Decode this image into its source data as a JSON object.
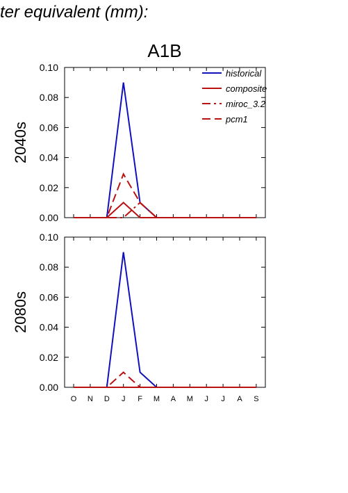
{
  "header": {
    "text": "ter equivalent (mm):"
  },
  "scenario_title": "A1B",
  "colors": {
    "historical": "#1111bb",
    "red": "#bb1111",
    "axis": "#000000"
  },
  "chart_data": [
    {
      "type": "line",
      "panel": "2040s",
      "title": "A1B",
      "ylabel": "2040s",
      "xlabel": "",
      "ylim": [
        0,
        0.1
      ],
      "yticks": [
        "0.00",
        "0.02",
        "0.04",
        "0.06",
        "0.08",
        "0.10"
      ],
      "categories": [
        "O",
        "N",
        "D",
        "J",
        "F",
        "M",
        "A",
        "M",
        "J",
        "J",
        "A",
        "S"
      ],
      "grid": false,
      "legend_position": "top-right",
      "series": [
        {
          "name": "historical",
          "style": "solid",
          "color": "#1111bb",
          "values": [
            0,
            0,
            0,
            0.09,
            0.01,
            0,
            0,
            0,
            0,
            0,
            0,
            0
          ]
        },
        {
          "name": "composite",
          "style": "solid",
          "color": "#bb1111",
          "values": [
            0,
            0,
            0,
            0.01,
            0,
            0,
            0,
            0,
            0,
            0,
            0,
            0
          ]
        },
        {
          "name": "miroc_3.2",
          "style": "dashdot",
          "color": "#bb1111",
          "values": [
            0,
            0,
            0,
            0.0,
            0.01,
            0,
            0,
            0,
            0,
            0,
            0,
            0
          ]
        },
        {
          "name": "pcm1",
          "style": "dashed",
          "color": "#bb1111",
          "values": [
            0,
            0,
            0,
            0.029,
            0.01,
            0,
            0,
            0,
            0,
            0,
            0,
            0
          ]
        }
      ]
    },
    {
      "type": "line",
      "panel": "2080s",
      "title": "",
      "ylabel": "2080s",
      "xlabel": "",
      "ylim": [
        0,
        0.1
      ],
      "yticks": [
        "0.00",
        "0.02",
        "0.04",
        "0.06",
        "0.08",
        "0.10"
      ],
      "categories": [
        "O",
        "N",
        "D",
        "J",
        "F",
        "M",
        "A",
        "M",
        "J",
        "J",
        "A",
        "S"
      ],
      "grid": false,
      "series": [
        {
          "name": "historical",
          "style": "solid",
          "color": "#1111bb",
          "values": [
            0,
            0,
            0,
            0.09,
            0.01,
            0,
            0,
            0,
            0,
            0,
            0,
            0
          ]
        },
        {
          "name": "composite",
          "style": "solid",
          "color": "#bb1111",
          "values": [
            0,
            0,
            0,
            0,
            0,
            0,
            0,
            0,
            0,
            0,
            0,
            0
          ]
        },
        {
          "name": "miroc_3.2",
          "style": "dashdot",
          "color": "#bb1111",
          "values": [
            0,
            0,
            0,
            0,
            0,
            0,
            0,
            0,
            0,
            0,
            0,
            0
          ]
        },
        {
          "name": "pcm1",
          "style": "dashed",
          "color": "#bb1111",
          "values": [
            0,
            0,
            0,
            0.01,
            0,
            0,
            0,
            0,
            0,
            0,
            0,
            0
          ]
        }
      ]
    }
  ]
}
